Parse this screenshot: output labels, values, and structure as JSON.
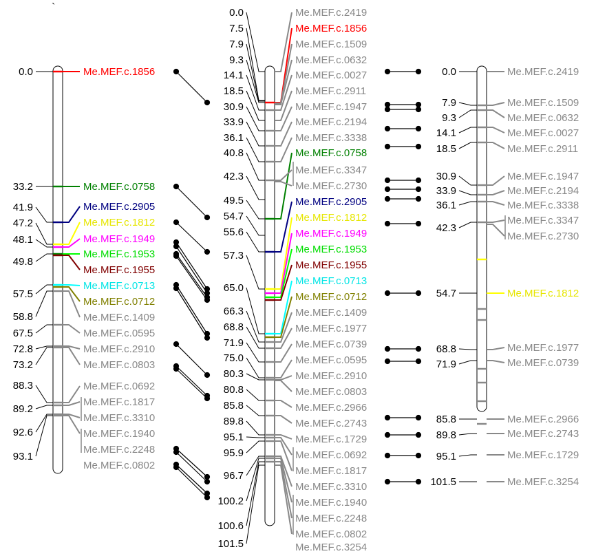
{
  "colors": {
    "default": "#888888",
    "red": "#ff0000",
    "green": "#008000",
    "navy": "#000080",
    "yellow": "#ffff00",
    "magenta": "#ff00ff",
    "lime": "#00ff00",
    "maroon": "#800000",
    "cyan": "#00ffff",
    "olive": "#808000"
  },
  "corner_mark": "`",
  "maps": [
    {
      "id": "left",
      "positions": [
        "0.0",
        "33.2",
        "41.9",
        "47.2",
        "48.1",
        "49.8",
        "57.5",
        "58.8",
        "67.5",
        "72.8",
        "73.2",
        "88.3",
        "89.2",
        "92.6",
        "93.1"
      ],
      "markers": [
        {
          "name": "Me.MEF.c.1856",
          "color": "red"
        },
        {
          "name": "Me.MEF.c.0758",
          "color": "green"
        },
        {
          "name": "Me.MEF.c.2905",
          "color": "navy"
        },
        {
          "name": "Me.MEF.c.1812",
          "color": "yellow"
        },
        {
          "name": "Me.MEF.c.1949",
          "color": "magenta"
        },
        {
          "name": "Me.MEF.c.1953",
          "color": "lime"
        },
        {
          "name": "Me.MEF.c.1955",
          "color": "maroon"
        },
        {
          "name": "Me.MEF.c.0713",
          "color": "cyan"
        },
        {
          "name": "Me.MEF.c.0712",
          "color": "olive"
        },
        {
          "name": "Me.MEF.c.1409",
          "color": "default"
        },
        {
          "name": "Me.MEF.c.0595",
          "color": "default"
        },
        {
          "name": "Me.MEF.c.2910",
          "color": "default"
        },
        {
          "name": "Me.MEF.c.0803",
          "color": "default"
        },
        {
          "name": "Me.MEF.c.0692",
          "color": "default"
        },
        {
          "name": "Me.MEF.c.1817",
          "color": "default"
        },
        {
          "name": "Me.MEF.c.3310",
          "color": "default"
        },
        {
          "name": "Me.MEF.c.1940",
          "color": "default"
        },
        {
          "name": "Me.MEF.c.2248",
          "color": "default"
        },
        {
          "name": "Me.MEF.c.0802",
          "color": "default"
        }
      ]
    },
    {
      "id": "middle",
      "positions": [
        "0.0",
        "7.5",
        "7.9",
        "9.3",
        "14.1",
        "18.5",
        "30.9",
        "33.9",
        "36.1",
        "40.8",
        "42.3",
        "49.5",
        "54.7",
        "55.6",
        "57.3",
        "65.0",
        "66.3",
        "68.8",
        "71.9",
        "75.0",
        "80.3",
        "80.8",
        "85.8",
        "89.8",
        "95.1",
        "95.9",
        "96.7",
        "100.2",
        "100.6",
        "101.5"
      ],
      "markers": [
        {
          "name": "Me.MEF.c.2419",
          "color": "default"
        },
        {
          "name": "Me.MEF.c.1856",
          "color": "red"
        },
        {
          "name": "Me.MEF.c.1509",
          "color": "default"
        },
        {
          "name": "Me.MEF.c.0632",
          "color": "default"
        },
        {
          "name": "Me.MEF.c.0027",
          "color": "default"
        },
        {
          "name": "Me.MEF.c.2911",
          "color": "default"
        },
        {
          "name": "Me.MEF.c.1947",
          "color": "default"
        },
        {
          "name": "Me.MEF.c.2194",
          "color": "default"
        },
        {
          "name": "Me.MEF.c.3338",
          "color": "default"
        },
        {
          "name": "Me.MEF.c.0758",
          "color": "green"
        },
        {
          "name": "Me.MEF.c.3347",
          "color": "default"
        },
        {
          "name": "Me.MEF.c.2730",
          "color": "default"
        },
        {
          "name": "Me.MEF.c.2905",
          "color": "navy"
        },
        {
          "name": "Me.MEF.c.1812",
          "color": "yellow"
        },
        {
          "name": "Me.MEF.c.1949",
          "color": "magenta"
        },
        {
          "name": "Me.MEF.c.1953",
          "color": "lime"
        },
        {
          "name": "Me.MEF.c.1955",
          "color": "maroon"
        },
        {
          "name": "Me.MEF.c.0713",
          "color": "cyan"
        },
        {
          "name": "Me.MEF.c.0712",
          "color": "olive"
        },
        {
          "name": "Me.MEF.c.1409",
          "color": "default"
        },
        {
          "name": "Me.MEF.c.1977",
          "color": "default"
        },
        {
          "name": "Me.MEF.c.0739",
          "color": "default"
        },
        {
          "name": "Me.MEF.c.0595",
          "color": "default"
        },
        {
          "name": "Me.MEF.c.2910",
          "color": "default"
        },
        {
          "name": "Me.MEF.c.0803",
          "color": "default"
        },
        {
          "name": "Me.MEF.c.2966",
          "color": "default"
        },
        {
          "name": "Me.MEF.c.2743",
          "color": "default"
        },
        {
          "name": "Me.MEF.c.1729",
          "color": "default"
        },
        {
          "name": "Me.MEF.c.0692",
          "color": "default"
        },
        {
          "name": "Me.MEF.c.1817",
          "color": "default"
        },
        {
          "name": "Me.MEF.c.3310",
          "color": "default"
        },
        {
          "name": "Me.MEF.c.1940",
          "color": "default"
        },
        {
          "name": "Me.MEF.c.2248",
          "color": "default"
        },
        {
          "name": "Me.MEF.c.0802",
          "color": "default"
        },
        {
          "name": "Me.MEF.c.3254",
          "color": "default"
        }
      ]
    },
    {
      "id": "right",
      "positions": [
        "0.0",
        "7.9",
        "9.3",
        "14.1",
        "18.5",
        "30.9",
        "33.9",
        "36.1",
        "42.3",
        "54.7",
        "68.8",
        "71.9",
        "85.8",
        "89.8",
        "95.1",
        "101.5"
      ],
      "markers": [
        {
          "name": "Me.MEF.c.2419",
          "color": "default"
        },
        {
          "name": "Me.MEF.c.1509",
          "color": "default"
        },
        {
          "name": "Me.MEF.c.0632",
          "color": "default"
        },
        {
          "name": "Me.MEF.c.0027",
          "color": "default"
        },
        {
          "name": "Me.MEF.c.2911",
          "color": "default"
        },
        {
          "name": "Me.MEF.c.1947",
          "color": "default"
        },
        {
          "name": "Me.MEF.c.2194",
          "color": "default"
        },
        {
          "name": "Me.MEF.c.3338",
          "color": "default"
        },
        {
          "name": "Me.MEF.c.3347",
          "color": "default"
        },
        {
          "name": "Me.MEF.c.2730",
          "color": "default"
        },
        {
          "name": "Me.MEF.c.1812",
          "color": "yellow"
        },
        {
          "name": "Me.MEF.c.1977",
          "color": "default"
        },
        {
          "name": "Me.MEF.c.0739",
          "color": "default"
        },
        {
          "name": "Me.MEF.c.2966",
          "color": "default"
        },
        {
          "name": "Me.MEF.c.2743",
          "color": "default"
        },
        {
          "name": "Me.MEF.c.1729",
          "color": "default"
        }
      ]
    }
  ]
}
